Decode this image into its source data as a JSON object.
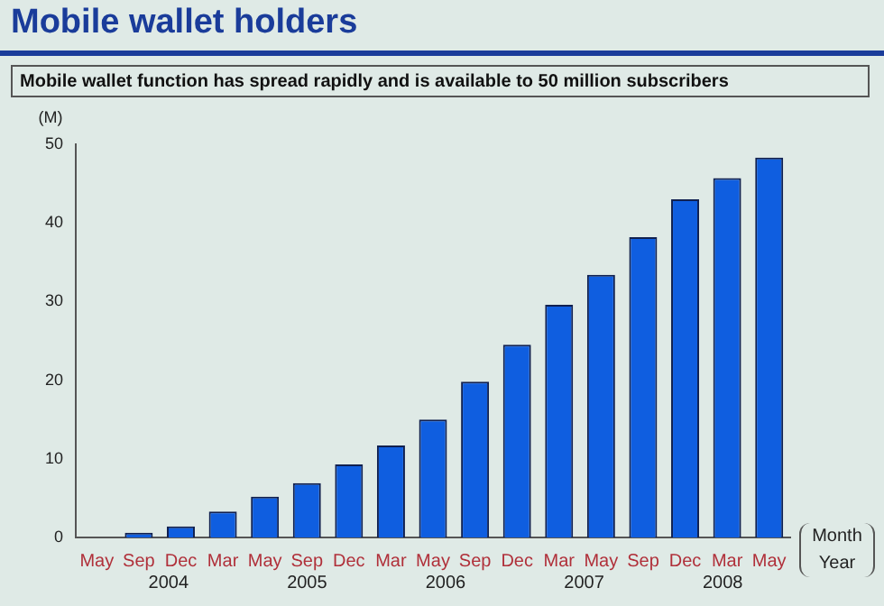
{
  "chart_data": {
    "type": "bar",
    "title": "Mobile wallet holders",
    "subtitle": "Mobile wallet function has spread rapidly and is available to 50 million subscribers",
    "ylabel": "(M)",
    "xlabel": "Month",
    "categories": [
      "May",
      "Sep",
      "Dec",
      "Mar",
      "May",
      "Sep",
      "Dec",
      "Mar",
      "May",
      "Sep",
      "Dec",
      "Mar",
      "May",
      "Sep",
      "Dec",
      "Mar",
      "May"
    ],
    "values": [
      0,
      0.6,
      1.4,
      3.3,
      5.2,
      6.9,
      9.3,
      11.7,
      15,
      19.8,
      24.5,
      29.6,
      33.4,
      38.2,
      43,
      45.7,
      48.3
    ],
    "color": "#0f5ee0",
    "ylim": [
      0,
      50
    ],
    "yticks": [
      0,
      10,
      20,
      30,
      40,
      50
    ],
    "grid": false,
    "legend": false,
    "annotations": [
      "2004",
      "2005",
      "2006",
      "2007",
      "2008",
      "Year"
    ]
  }
}
